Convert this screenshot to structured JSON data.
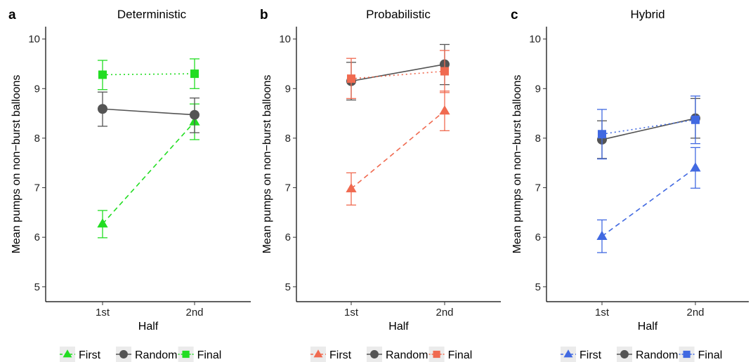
{
  "chart_data": [
    {
      "type": "line",
      "panel_letter": "a",
      "title": "Deterministic",
      "xlabel": "Half",
      "ylabel": "Mean pumps on non−burst balloons",
      "categories": [
        "1st",
        "2nd"
      ],
      "ylim": [
        4.7,
        10.25
      ],
      "yticks": [
        5,
        6,
        7,
        8,
        9,
        10
      ],
      "grid": false,
      "legend_position": "bottom",
      "series": [
        {
          "name": "First",
          "values": [
            6.27,
            8.33
          ],
          "error_low": [
            5.99,
            7.97
          ],
          "error_high": [
            6.54,
            8.69
          ],
          "color": "#22dd22",
          "marker": "triangle",
          "line_style": "dashed"
        },
        {
          "name": "Random",
          "values": [
            8.59,
            8.47
          ],
          "error_low": [
            8.24,
            8.11
          ],
          "error_high": [
            8.93,
            8.81
          ],
          "color": "#545454",
          "marker": "circle",
          "line_style": "solid"
        },
        {
          "name": "Final",
          "values": [
            9.28,
            9.3
          ],
          "error_low": [
            8.98,
            9.0
          ],
          "error_high": [
            9.57,
            9.6
          ],
          "color": "#22dd22",
          "marker": "square",
          "line_style": "dotted"
        }
      ]
    },
    {
      "type": "line",
      "panel_letter": "b",
      "title": "Probabilistic",
      "xlabel": "Half",
      "ylabel": "Mean pumps on non−burst balloons",
      "categories": [
        "1st",
        "2nd"
      ],
      "ylim": [
        4.7,
        10.25
      ],
      "yticks": [
        5,
        6,
        7,
        8,
        9,
        10
      ],
      "grid": false,
      "legend_position": "bottom",
      "series": [
        {
          "name": "First",
          "values": [
            6.98,
            8.55
          ],
          "error_low": [
            6.65,
            8.15
          ],
          "error_high": [
            7.3,
            8.95
          ],
          "color": "#f06a50",
          "marker": "triangle",
          "line_style": "dashed"
        },
        {
          "name": "Random",
          "values": [
            9.15,
            9.49
          ],
          "error_low": [
            8.77,
            9.08
          ],
          "error_high": [
            9.53,
            9.89
          ],
          "color": "#545454",
          "marker": "circle",
          "line_style": "solid"
        },
        {
          "name": "Final",
          "values": [
            9.2,
            9.35
          ],
          "error_low": [
            8.8,
            8.92
          ],
          "error_high": [
            9.61,
            9.77
          ],
          "color": "#f06a50",
          "marker": "square",
          "line_style": "dotted"
        }
      ]
    },
    {
      "type": "line",
      "panel_letter": "c",
      "title": "Hybrid",
      "xlabel": "Half",
      "ylabel": "Mean pumps on non−burst balloons",
      "categories": [
        "1st",
        "2nd"
      ],
      "ylim": [
        4.7,
        10.25
      ],
      "yticks": [
        5,
        6,
        7,
        8,
        9,
        10
      ],
      "grid": false,
      "legend_position": "bottom",
      "series": [
        {
          "name": "First",
          "values": [
            6.02,
            7.4
          ],
          "error_low": [
            5.69,
            6.99
          ],
          "error_high": [
            6.35,
            7.81
          ],
          "color": "#4169e1",
          "marker": "triangle",
          "line_style": "dashed"
        },
        {
          "name": "Random",
          "values": [
            7.97,
            8.4
          ],
          "error_low": [
            7.59,
            8.0
          ],
          "error_high": [
            8.35,
            8.8
          ],
          "color": "#545454",
          "marker": "circle",
          "line_style": "solid"
        },
        {
          "name": "Final",
          "values": [
            8.08,
            8.37
          ],
          "error_low": [
            7.58,
            7.89
          ],
          "error_high": [
            8.58,
            8.85
          ],
          "color": "#4169e1",
          "marker": "square",
          "line_style": "dotted"
        }
      ]
    }
  ]
}
